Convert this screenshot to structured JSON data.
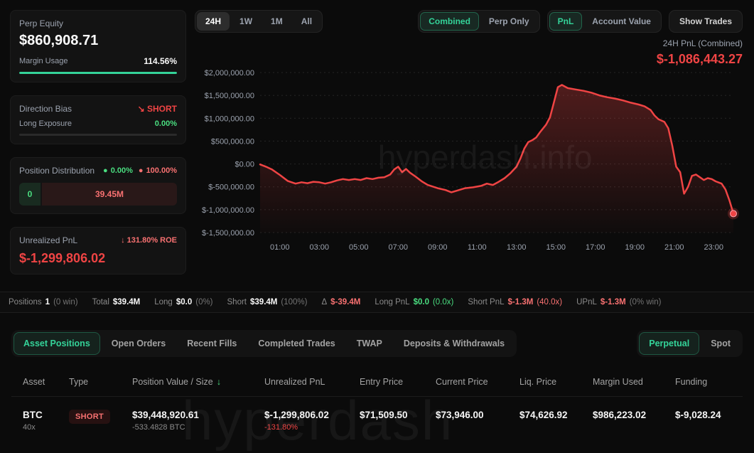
{
  "sidebar": {
    "perp_equity_label": "Perp Equity",
    "perp_equity_value": "$860,908.71",
    "margin_usage_label": "Margin Usage",
    "margin_usage_value": "114.56%",
    "direction_bias_label": "Direction Bias",
    "direction_bias_arrow": "↘",
    "direction_bias_value": "SHORT",
    "long_exposure_label": "Long Exposure",
    "long_exposure_value": "0.00%",
    "distribution_label": "Position Distribution",
    "distribution_long_pct": "0.00%",
    "distribution_short_pct": "100.00%",
    "distribution_long_value": "0",
    "distribution_short_value": "39.45M",
    "unrealized_label": "Unrealized PnL",
    "unrealized_roe": "↓ 131.80% ROE",
    "unrealized_value": "$-1,299,806.02"
  },
  "toolbar": {
    "time_ranges": [
      {
        "label": "24H",
        "active": true
      },
      {
        "label": "1W",
        "active": false
      },
      {
        "label": "1M",
        "active": false
      },
      {
        "label": "All",
        "active": false
      }
    ],
    "view_modes": [
      {
        "label": "Combined",
        "active": true
      },
      {
        "label": "Perp Only",
        "active": false
      }
    ],
    "chart_modes": [
      {
        "label": "PnL",
        "active": true
      },
      {
        "label": "Account Value",
        "active": false
      }
    ],
    "show_trades_label": "Show Trades"
  },
  "chart": {
    "title": "24H PnL (Combined)",
    "value": "$-1,086,443.27",
    "watermark": "hyperdash.info"
  },
  "chart_data": {
    "type": "line",
    "title": "24H PnL (Combined)",
    "line_color": "#ef4444",
    "x_range_hours": [
      0,
      24
    ],
    "y_range": [
      -1500000,
      2000000
    ],
    "grid": "horizontal-dotted",
    "y_ticks": [
      {
        "value": 2000000,
        "label": "$2,000,000.00"
      },
      {
        "value": 1500000,
        "label": "$1,500,000.00"
      },
      {
        "value": 1000000,
        "label": "$1,000,000.00"
      },
      {
        "value": 500000,
        "label": "$500,000.00"
      },
      {
        "value": 0,
        "label": "$0.00"
      },
      {
        "value": -500000,
        "label": "$-500,000.00"
      },
      {
        "value": -1000000,
        "label": "$-1,000,000.00"
      },
      {
        "value": -1500000,
        "label": "$-1,500,000.00"
      }
    ],
    "x_ticks": [
      {
        "hour": 1,
        "label": "01:00"
      },
      {
        "hour": 3,
        "label": "03:00"
      },
      {
        "hour": 5,
        "label": "05:00"
      },
      {
        "hour": 7,
        "label": "07:00"
      },
      {
        "hour": 9,
        "label": "09:00"
      },
      {
        "hour": 11,
        "label": "11:00"
      },
      {
        "hour": 13,
        "label": "13:00"
      },
      {
        "hour": 15,
        "label": "15:00"
      },
      {
        "hour": 17,
        "label": "17:00"
      },
      {
        "hour": 19,
        "label": "19:00"
      },
      {
        "hour": 21,
        "label": "21:00"
      },
      {
        "hour": 23,
        "label": "23:00"
      }
    ],
    "points": [
      [
        0,
        -10000
      ],
      [
        0.3,
        -60000
      ],
      [
        0.6,
        -120000
      ],
      [
        1,
        -240000
      ],
      [
        1.4,
        -370000
      ],
      [
        1.8,
        -430000
      ],
      [
        2.1,
        -400000
      ],
      [
        2.4,
        -420000
      ],
      [
        2.7,
        -390000
      ],
      [
        3,
        -400000
      ],
      [
        3.3,
        -430000
      ],
      [
        3.6,
        -400000
      ],
      [
        3.9,
        -360000
      ],
      [
        4.2,
        -330000
      ],
      [
        4.5,
        -350000
      ],
      [
        4.8,
        -330000
      ],
      [
        5.1,
        -350000
      ],
      [
        5.4,
        -310000
      ],
      [
        5.7,
        -330000
      ],
      [
        6,
        -300000
      ],
      [
        6.3,
        -290000
      ],
      [
        6.6,
        -230000
      ],
      [
        6.8,
        -120000
      ],
      [
        7,
        -60000
      ],
      [
        7.2,
        -180000
      ],
      [
        7.4,
        -110000
      ],
      [
        7.6,
        -190000
      ],
      [
        7.9,
        -280000
      ],
      [
        8.2,
        -380000
      ],
      [
        8.5,
        -460000
      ],
      [
        9,
        -530000
      ],
      [
        9.4,
        -570000
      ],
      [
        9.7,
        -620000
      ],
      [
        10,
        -580000
      ],
      [
        10.4,
        -530000
      ],
      [
        10.8,
        -510000
      ],
      [
        11.2,
        -480000
      ],
      [
        11.5,
        -430000
      ],
      [
        11.8,
        -460000
      ],
      [
        12.1,
        -390000
      ],
      [
        12.4,
        -310000
      ],
      [
        12.7,
        -200000
      ],
      [
        13,
        -60000
      ],
      [
        13.2,
        120000
      ],
      [
        13.4,
        340000
      ],
      [
        13.6,
        480000
      ],
      [
        13.8,
        520000
      ],
      [
        14,
        580000
      ],
      [
        14.2,
        700000
      ],
      [
        14.5,
        860000
      ],
      [
        14.7,
        1020000
      ],
      [
        14.9,
        1350000
      ],
      [
        15.1,
        1680000
      ],
      [
        15.3,
        1730000
      ],
      [
        15.6,
        1660000
      ],
      [
        16,
        1630000
      ],
      [
        16.4,
        1600000
      ],
      [
        16.8,
        1560000
      ],
      [
        17.2,
        1500000
      ],
      [
        17.6,
        1460000
      ],
      [
        18,
        1430000
      ],
      [
        18.4,
        1390000
      ],
      [
        18.8,
        1340000
      ],
      [
        19.2,
        1300000
      ],
      [
        19.5,
        1260000
      ],
      [
        19.8,
        1180000
      ],
      [
        20,
        1060000
      ],
      [
        20.2,
        980000
      ],
      [
        20.5,
        920000
      ],
      [
        20.7,
        780000
      ],
      [
        20.9,
        400000
      ],
      [
        21.1,
        -60000
      ],
      [
        21.3,
        -180000
      ],
      [
        21.5,
        -650000
      ],
      [
        21.7,
        -500000
      ],
      [
        21.9,
        -260000
      ],
      [
        22.1,
        -230000
      ],
      [
        22.3,
        -290000
      ],
      [
        22.5,
        -350000
      ],
      [
        22.7,
        -310000
      ],
      [
        22.9,
        -330000
      ],
      [
        23.1,
        -380000
      ],
      [
        23.4,
        -430000
      ],
      [
        23.6,
        -560000
      ],
      [
        23.8,
        -800000
      ],
      [
        24,
        -1086443
      ]
    ]
  },
  "positions_summary": {
    "items": [
      {
        "label": "Positions",
        "value": "1",
        "suffix": "(0 win)",
        "value_color": "#fafafa",
        "suffix_color": "#737373"
      },
      {
        "label": "Total",
        "value": "$39.4M",
        "value_color": "#fafafa"
      },
      {
        "label": "Long",
        "value": "$0.0",
        "suffix": "(0%)",
        "value_color": "#fafafa",
        "suffix_color": "#737373"
      },
      {
        "label": "Short",
        "value": "$39.4M",
        "suffix": "(100%)",
        "value_color": "#fafafa",
        "suffix_color": "#737373"
      },
      {
        "label": "Δ",
        "value": "$-39.4M",
        "value_color": "#f87171"
      },
      {
        "label": "Long PnL",
        "value": "$0.0",
        "suffix": "(0.0x)",
        "value_color": "#4ade80",
        "suffix_color": "#4ade80"
      },
      {
        "label": "Short PnL",
        "value": "$-1.3M",
        "suffix": "(40.0x)",
        "value_color": "#f87171",
        "suffix_color": "#f87171"
      },
      {
        "label": "UPnL",
        "value": "$-1.3M",
        "suffix": "(0% win)",
        "value_color": "#f87171",
        "suffix_color": "#737373"
      }
    ]
  },
  "tabs": {
    "items": [
      {
        "label": "Asset Positions",
        "active": true
      },
      {
        "label": "Open Orders",
        "active": false
      },
      {
        "label": "Recent Fills",
        "active": false
      },
      {
        "label": "Completed Trades",
        "active": false
      },
      {
        "label": "TWAP",
        "active": false
      },
      {
        "label": "Deposits & Withdrawals",
        "active": false
      }
    ],
    "filters": [
      {
        "label": "Perpetual",
        "active": true
      },
      {
        "label": "Spot",
        "active": false
      }
    ]
  },
  "table": {
    "columns": [
      {
        "label": "Asset"
      },
      {
        "label": "Type"
      },
      {
        "label": "Position Value / Size",
        "sort": "↓"
      },
      {
        "label": "Unrealized PnL"
      },
      {
        "label": "Entry Price"
      },
      {
        "label": "Current Price"
      },
      {
        "label": "Liq. Price"
      },
      {
        "label": "Margin Used"
      },
      {
        "label": "Funding"
      }
    ],
    "rows": [
      {
        "asset": "BTC",
        "leverage": "40x",
        "type": "SHORT",
        "position_value": "$39,448,920.61",
        "position_size": "-533.4828 BTC",
        "unrealized_pnl": "$-1,299,806.02",
        "unrealized_pnl_pct": "-131.80%",
        "entry_price": "$71,509.50",
        "current_price": "$73,946.00",
        "liq_price": "$74,626.92",
        "margin_used": "$986,223.02",
        "funding": "$-9,028.24"
      }
    ]
  },
  "watermark_bottom": "hyperdash",
  "colors": {
    "green": "#4ade80",
    "accent_green": "#34d399",
    "red": "#ef4444",
    "red_text": "#f87171"
  }
}
